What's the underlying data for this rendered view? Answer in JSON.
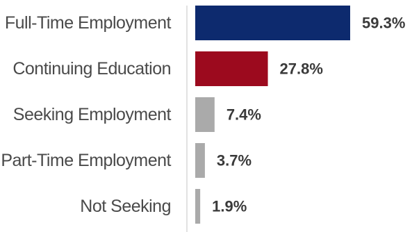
{
  "chart_data": {
    "type": "bar",
    "orientation": "horizontal",
    "categories": [
      "Full-Time Employment",
      "Continuing Education",
      "Seeking Employment",
      "Part-Time Employment",
      "Not Seeking"
    ],
    "values": [
      59.3,
      27.8,
      7.4,
      3.7,
      1.9
    ],
    "value_labels": [
      "59.3%",
      "27.8%",
      "7.4%",
      "3.7%",
      "1.9%"
    ],
    "colors": [
      "#0d2a6e",
      "#9c0a1e",
      "#aaaaaa",
      "#aaaaaa",
      "#aaaaaa"
    ],
    "title": "",
    "xlabel": "",
    "ylabel": "",
    "xlim": [
      0,
      59.3
    ],
    "grid": false,
    "legend": "none"
  }
}
